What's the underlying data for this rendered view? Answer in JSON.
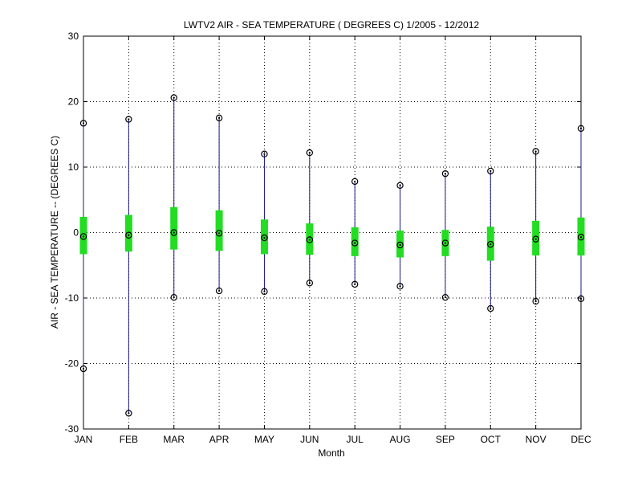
{
  "chart_data": {
    "type": "box",
    "title": "LWTV2  AIR - SEA TEMPERATURE ( DEGREES C) 1/2005 - 12/2012",
    "xlabel": "Month",
    "ylabel": "AIR - SEA TEMPERATURE -- (DEGREES C)",
    "ylim": [
      -30,
      30
    ],
    "yticks": [
      -30,
      -20,
      -10,
      0,
      10,
      20,
      30
    ],
    "grid": true,
    "colors": {
      "whisker": "#1a1a8c",
      "box": "#22dd22",
      "axis": "#000000",
      "grid": "#000000"
    },
    "categories": [
      "JAN",
      "FEB",
      "MAR",
      "APR",
      "MAY",
      "JUN",
      "JUL",
      "AUG",
      "SEP",
      "OCT",
      "NOV",
      "DEC"
    ],
    "max": [
      16.7,
      17.3,
      20.6,
      17.5,
      12.0,
      12.2,
      7.8,
      7.2,
      9.0,
      9.4,
      12.4,
      15.9
    ],
    "q3": [
      2.4,
      2.7,
      3.9,
      3.4,
      2.0,
      1.4,
      0.8,
      0.3,
      0.4,
      0.9,
      1.8,
      2.3
    ],
    "median": [
      -0.6,
      -0.4,
      0.0,
      -0.1,
      -0.8,
      -1.1,
      -1.6,
      -1.9,
      -1.6,
      -1.8,
      -1.0,
      -0.7
    ],
    "q1": [
      -3.3,
      -2.9,
      -2.6,
      -2.8,
      -3.3,
      -3.4,
      -3.6,
      -3.8,
      -3.6,
      -4.3,
      -3.5,
      -3.5
    ],
    "min": [
      -20.8,
      -27.6,
      -9.9,
      -8.9,
      -9.0,
      -7.7,
      -7.9,
      -8.2,
      -9.9,
      -11.6,
      -10.5,
      -10.1
    ]
  }
}
